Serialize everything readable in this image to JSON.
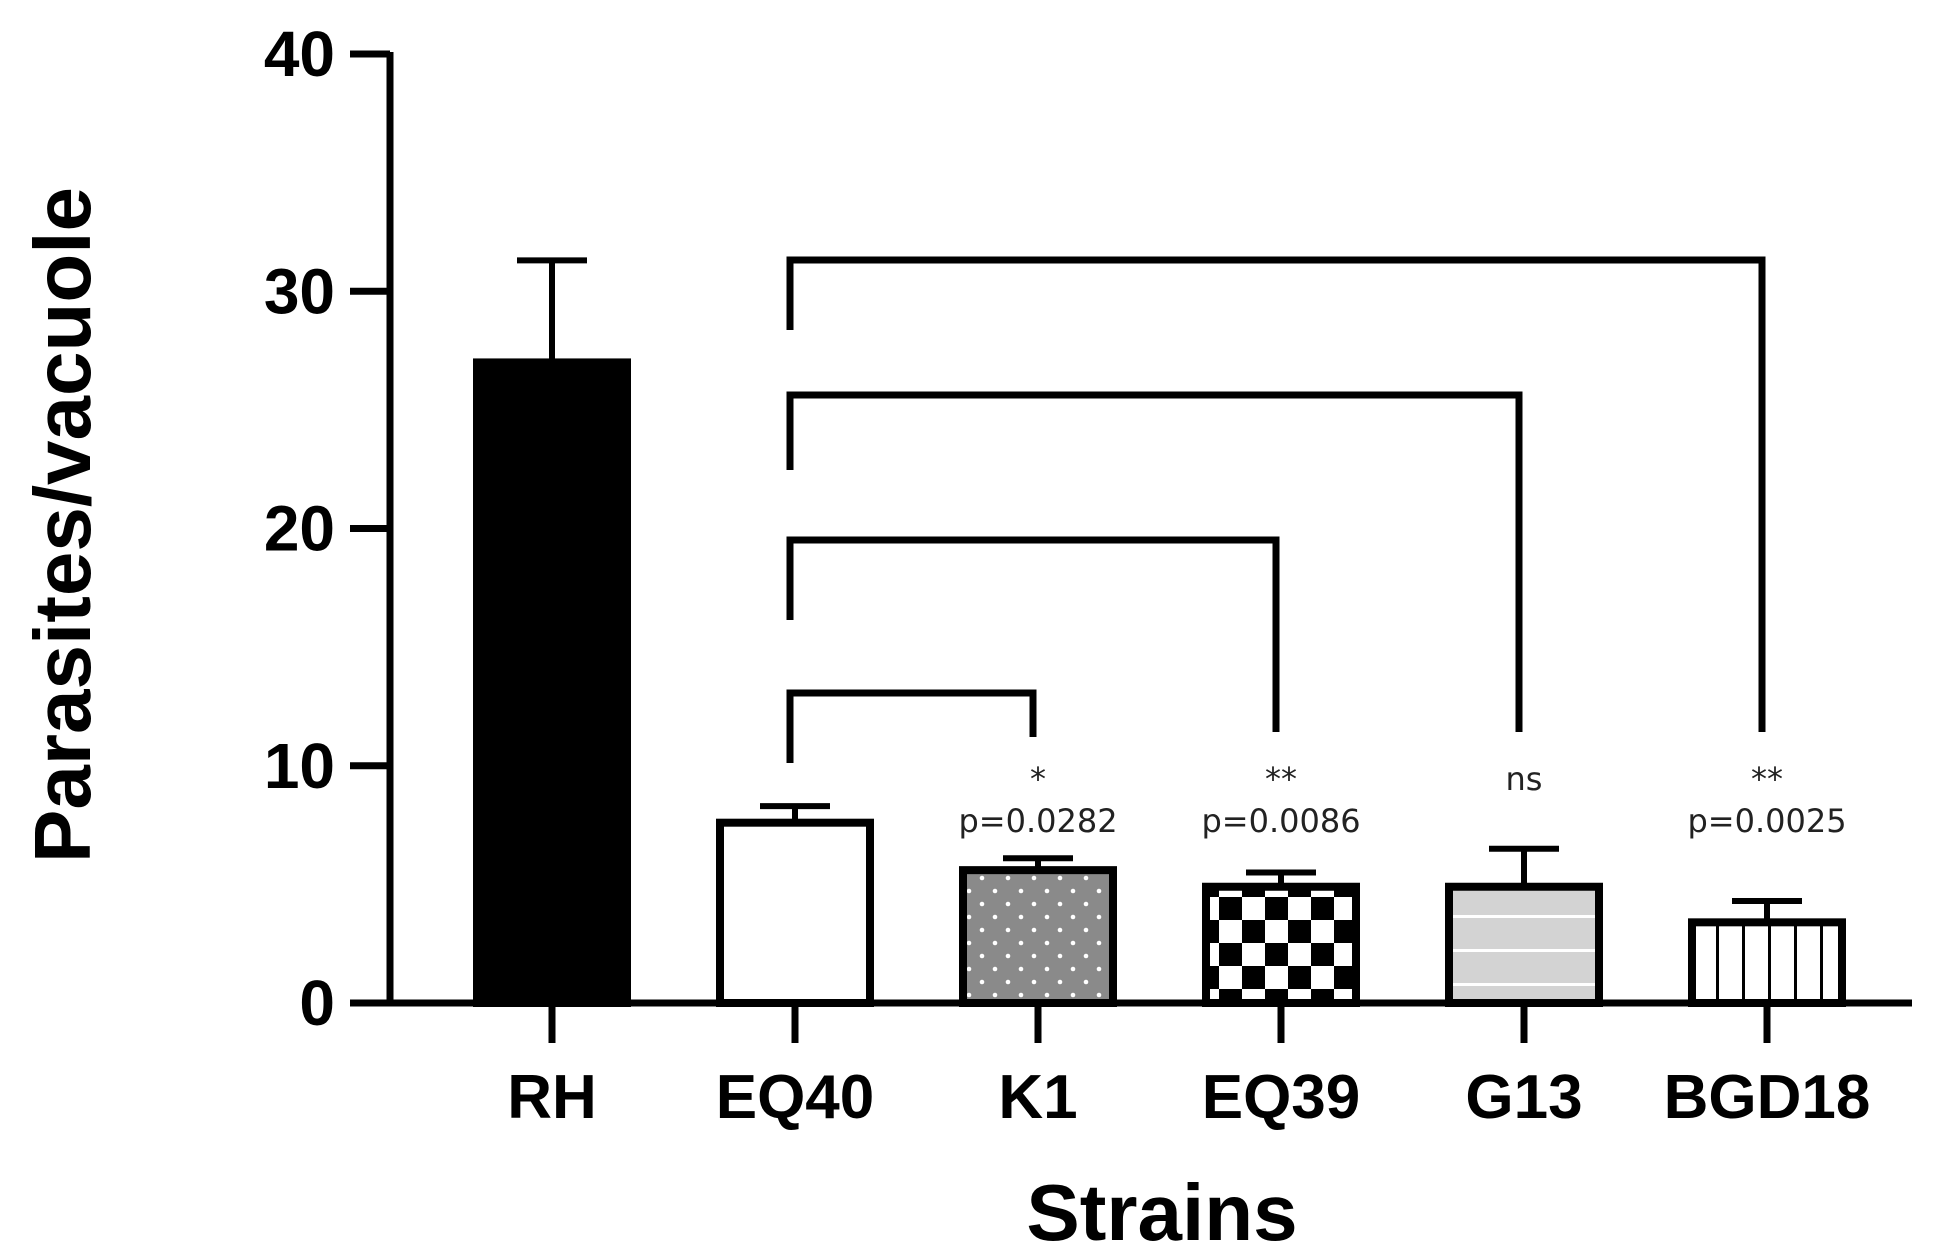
{
  "chart_data": {
    "type": "bar",
    "title": "",
    "xlabel": "Strains",
    "ylabel": "Parasites/vacuole",
    "ylim": [
      0,
      40
    ],
    "yticks": [
      0,
      10,
      20,
      30,
      40
    ],
    "categories": [
      "RH",
      "EQ40",
      "K1",
      "EQ39",
      "G13",
      "BGD18"
    ],
    "values": [
      27.0,
      7.6,
      5.6,
      4.9,
      4.9,
      3.4
    ],
    "errors": [
      4.3,
      0.7,
      0.5,
      0.6,
      1.6,
      0.9
    ],
    "bar_fills": [
      "solid-black",
      "white",
      "gray-dots",
      "checkerboard",
      "light-gray-stripes",
      "vertical-stripes"
    ],
    "grid": false,
    "legend": "none",
    "comparisons": [
      {
        "from": "EQ40",
        "to": "K1",
        "stars": "*",
        "p": "p=0.0282"
      },
      {
        "from": "EQ40",
        "to": "EQ39",
        "stars": "**",
        "p": "p=0.0086"
      },
      {
        "from": "EQ40",
        "to": "G13",
        "stars": "ns",
        "p": ""
      },
      {
        "from": "EQ40",
        "to": "BGD18",
        "stars": "**",
        "p": "p=0.0025"
      }
    ]
  }
}
